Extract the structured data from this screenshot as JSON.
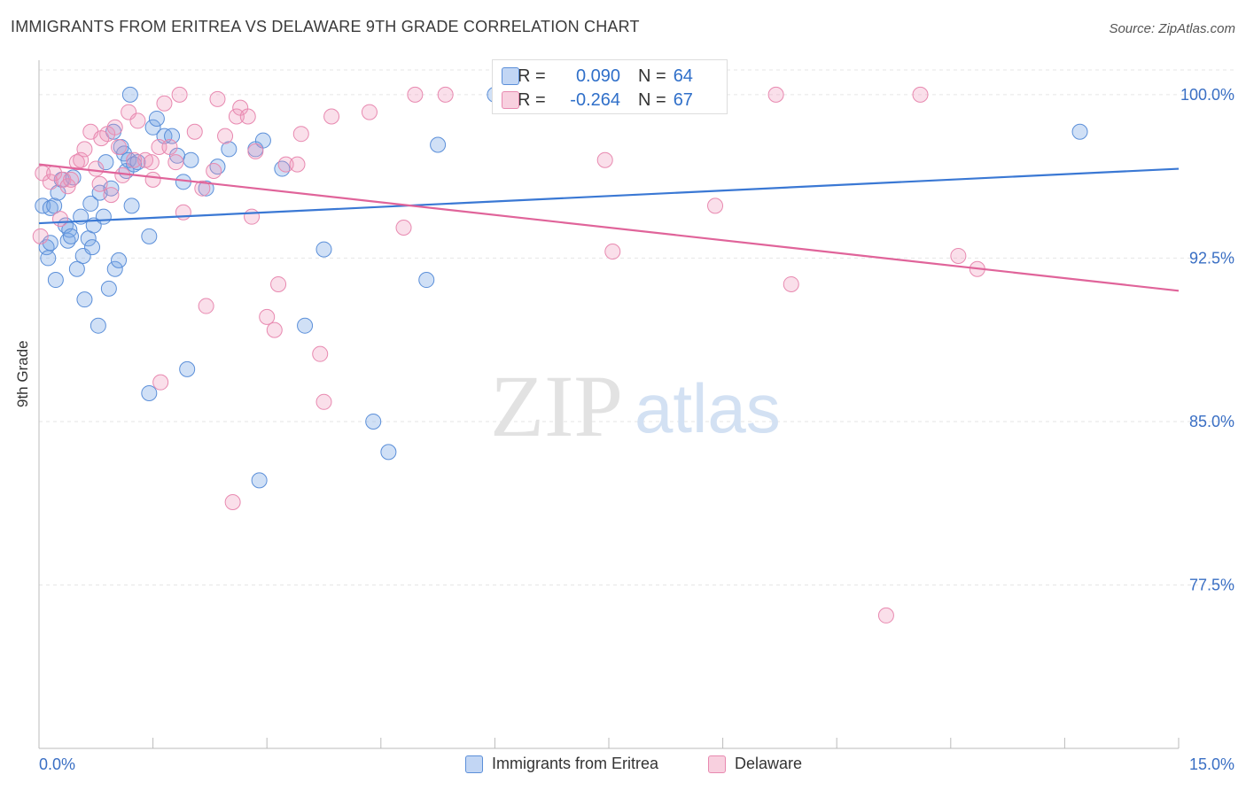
{
  "title": "IMMIGRANTS FROM ERITREA VS DELAWARE 9TH GRADE CORRELATION CHART",
  "source": "Source: ZipAtlas.com",
  "watermark": {
    "zip": "ZIP",
    "atlas": "atlas"
  },
  "colors": {
    "blue": "#3a78d4",
    "blue_fill": "rgba(120,165,230,0.35)",
    "blue_stroke": "#5b8fd9",
    "pink": "#e0649a",
    "pink_fill": "rgba(240,150,185,0.30)",
    "pink_stroke": "#e889b0",
    "tick_label": "#3a6fc4"
  },
  "stats": {
    "row1": {
      "r_label": "R =",
      "r_value": "0.090",
      "n_label": "N =",
      "n_value": "64"
    },
    "row2": {
      "r_label": "R =",
      "r_value": "-0.264",
      "n_label": "N =",
      "n_value": "67"
    }
  },
  "chart_data": {
    "type": "scatter",
    "title": "IMMIGRANTS FROM ERITREA VS DELAWARE 9TH GRADE CORRELATION CHART",
    "xlabel": "",
    "ylabel": "9th Grade",
    "xlim": [
      0,
      15
    ],
    "ylim": [
      70,
      101.5
    ],
    "x_tick_labels": [
      "0.0%",
      "15.0%"
    ],
    "y_ticks": [
      77.5,
      85.0,
      92.5,
      100.0
    ],
    "y_tick_labels": [
      "77.5%",
      "85.0%",
      "92.5%",
      "100.0%"
    ],
    "grid": true,
    "legend_position": "bottom-center",
    "series": [
      {
        "name": "Immigrants from Eritrea",
        "color": "blue",
        "trend": {
          "x": [
            0,
            15
          ],
          "y": [
            94.1,
            96.6
          ]
        },
        "points": [
          [
            0.05,
            94.9
          ],
          [
            0.1,
            93.0
          ],
          [
            0.12,
            92.5
          ],
          [
            0.15,
            94.8
          ],
          [
            0.2,
            94.9
          ],
          [
            0.22,
            91.5
          ],
          [
            0.25,
            95.5
          ],
          [
            0.3,
            96.1
          ],
          [
            0.35,
            94.0
          ],
          [
            0.38,
            93.3
          ],
          [
            0.4,
            93.8
          ],
          [
            0.42,
            93.5
          ],
          [
            0.45,
            96.2
          ],
          [
            0.5,
            92.0
          ],
          [
            0.55,
            94.4
          ],
          [
            0.58,
            92.6
          ],
          [
            0.6,
            90.6
          ],
          [
            0.65,
            93.4
          ],
          [
            0.68,
            95.0
          ],
          [
            0.7,
            93.0
          ],
          [
            0.72,
            94.0
          ],
          [
            0.78,
            89.4
          ],
          [
            0.8,
            95.5
          ],
          [
            0.85,
            94.4
          ],
          [
            0.88,
            96.9
          ],
          [
            0.92,
            91.1
          ],
          [
            0.95,
            95.7
          ],
          [
            0.98,
            98.3
          ],
          [
            1.0,
            92.0
          ],
          [
            1.05,
            92.4
          ],
          [
            1.08,
            97.6
          ],
          [
            1.12,
            97.3
          ],
          [
            1.15,
            96.5
          ],
          [
            1.18,
            97.0
          ],
          [
            1.2,
            100.0
          ],
          [
            1.22,
            94.9
          ],
          [
            1.25,
            96.8
          ],
          [
            1.3,
            96.9
          ],
          [
            1.45,
            93.5
          ],
          [
            1.5,
            98.5
          ],
          [
            1.55,
            98.9
          ],
          [
            1.65,
            98.1
          ],
          [
            1.75,
            98.1
          ],
          [
            1.82,
            97.2
          ],
          [
            1.9,
            96.0
          ],
          [
            1.95,
            87.4
          ],
          [
            2.0,
            97.0
          ],
          [
            2.2,
            95.7
          ],
          [
            2.35,
            96.7
          ],
          [
            2.5,
            97.5
          ],
          [
            2.85,
            97.5
          ],
          [
            2.95,
            97.9
          ],
          [
            3.2,
            96.6
          ],
          [
            3.5,
            89.4
          ],
          [
            3.75,
            92.9
          ],
          [
            4.4,
            85.0
          ],
          [
            4.6,
            83.6
          ],
          [
            5.1,
            91.5
          ],
          [
            5.25,
            97.7
          ],
          [
            6.0,
            100.0
          ],
          [
            13.7,
            98.3
          ],
          [
            1.45,
            86.3
          ],
          [
            2.9,
            82.3
          ],
          [
            0.15,
            93.2
          ]
        ]
      },
      {
        "name": "Delaware",
        "color": "pink",
        "trend": {
          "x": [
            0,
            15
          ],
          "y": [
            96.8,
            91.0
          ]
        },
        "points": [
          [
            0.02,
            93.5
          ],
          [
            0.05,
            96.4
          ],
          [
            0.15,
            96.0
          ],
          [
            0.2,
            96.4
          ],
          [
            0.28,
            94.3
          ],
          [
            0.32,
            96.1
          ],
          [
            0.38,
            95.8
          ],
          [
            0.42,
            96.1
          ],
          [
            0.5,
            96.9
          ],
          [
            0.55,
            97.0
          ],
          [
            0.6,
            97.5
          ],
          [
            0.68,
            98.3
          ],
          [
            0.75,
            96.6
          ],
          [
            0.8,
            95.9
          ],
          [
            0.82,
            98.0
          ],
          [
            0.9,
            98.2
          ],
          [
            0.95,
            95.4
          ],
          [
            1.0,
            98.5
          ],
          [
            1.05,
            97.6
          ],
          [
            1.1,
            96.3
          ],
          [
            1.18,
            99.2
          ],
          [
            1.25,
            97.0
          ],
          [
            1.3,
            98.8
          ],
          [
            1.4,
            97.0
          ],
          [
            1.48,
            96.9
          ],
          [
            1.5,
            96.1
          ],
          [
            1.58,
            97.6
          ],
          [
            1.6,
            86.8
          ],
          [
            1.65,
            99.6
          ],
          [
            1.72,
            97.6
          ],
          [
            1.8,
            96.9
          ],
          [
            1.85,
            100.0
          ],
          [
            1.9,
            94.6
          ],
          [
            2.05,
            98.3
          ],
          [
            2.15,
            95.7
          ],
          [
            2.2,
            90.3
          ],
          [
            2.3,
            96.5
          ],
          [
            2.35,
            99.8
          ],
          [
            2.45,
            98.1
          ],
          [
            2.55,
            81.3
          ],
          [
            2.6,
            99.0
          ],
          [
            2.65,
            99.4
          ],
          [
            2.75,
            99.0
          ],
          [
            2.8,
            94.4
          ],
          [
            2.85,
            97.4
          ],
          [
            3.0,
            89.8
          ],
          [
            3.1,
            89.2
          ],
          [
            3.15,
            91.3
          ],
          [
            3.25,
            96.8
          ],
          [
            3.4,
            96.8
          ],
          [
            3.45,
            98.2
          ],
          [
            3.7,
            88.1
          ],
          [
            3.75,
            85.9
          ],
          [
            3.85,
            99.0
          ],
          [
            4.35,
            99.2
          ],
          [
            4.8,
            93.9
          ],
          [
            4.95,
            100.0
          ],
          [
            5.35,
            100.0
          ],
          [
            7.45,
            97.0
          ],
          [
            7.55,
            92.8
          ],
          [
            8.9,
            94.9
          ],
          [
            9.7,
            100.0
          ],
          [
            9.9,
            91.3
          ],
          [
            11.15,
            76.1
          ],
          [
            11.6,
            100.0
          ],
          [
            12.1,
            92.6
          ],
          [
            12.35,
            92.0
          ]
        ]
      }
    ]
  }
}
